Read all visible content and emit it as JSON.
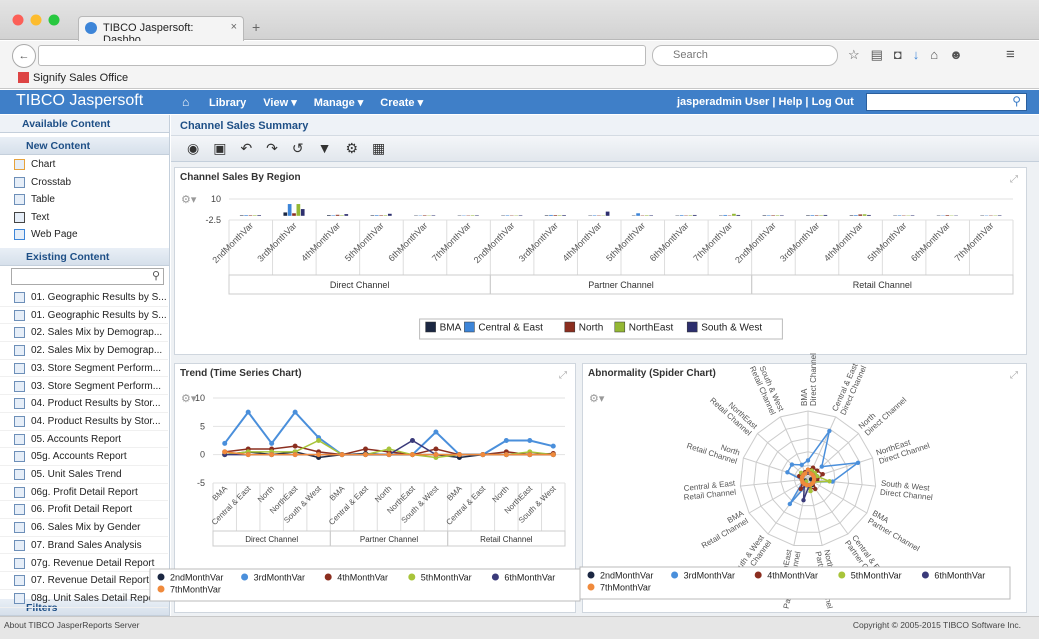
{
  "browser": {
    "tab_title": "TIBCO Jaspersoft: Dashbo...",
    "search_placeholder": "Search",
    "bookmark": "Signify Sales Office"
  },
  "header": {
    "logo": "TIBCO Jaspersoft",
    "nav": [
      "Library",
      "View",
      "Manage",
      "Create"
    ],
    "user": "jasperadmin User",
    "links": [
      "Help",
      "Log Out"
    ]
  },
  "sidebar": {
    "title": "Available Content",
    "new_content": {
      "title": "New Content",
      "items": [
        "Chart",
        "Crosstab",
        "Table",
        "Text",
        "Web Page"
      ]
    },
    "existing_content": {
      "title": "Existing Content",
      "items": [
        "01. Geographic Results by S...",
        "01. Geographic Results by S...",
        "02. Sales Mix by Demograp...",
        "02. Sales Mix by Demograp...",
        "03. Store Segment Perform...",
        "03. Store Segment Perform...",
        "04. Product Results by Stor...",
        "04. Product Results by Stor...",
        "05. Accounts Report",
        "05g. Accounts Report",
        "05. Unit Sales Trend",
        "06g. Profit Detail Report",
        "06. Profit Detail Report",
        "06. Sales Mix by Gender",
        "07. Brand Sales Analysis",
        "07g. Revenue Detail Report",
        "07. Revenue Detail Report",
        "08g. Unit Sales Detail Report"
      ]
    },
    "filters": "Filters"
  },
  "dashboard": {
    "title": "Channel Sales Summary"
  },
  "footer": {
    "left": "About TIBCO JasperReports Server",
    "right": "Copyright © 2005-2015 TIBCO Software Inc."
  },
  "chart_data": [
    {
      "type": "bar",
      "title": "Channel Sales By Region",
      "groups": [
        {
          "name": "Direct Channel",
          "categories": [
            "2ndMonthVar",
            "3rdMonthVar",
            "4thMonthVar",
            "5thMonthVar",
            "6thMonthVar",
            "7thMonthVar"
          ]
        },
        {
          "name": "Partner Channel",
          "categories": [
            "2ndMonthVar",
            "3rdMonthVar",
            "4thMonthVar",
            "5thMonthVar",
            "6thMonthVar",
            "7thMonthVar"
          ]
        },
        {
          "name": "Retail Channel",
          "categories": [
            "2ndMonthVar",
            "3rdMonthVar",
            "4thMonthVar",
            "5thMonthVar",
            "6thMonthVar",
            "7thMonthVar"
          ]
        }
      ],
      "ylim": [
        -2.5,
        10
      ],
      "yticks": [
        -2.5,
        10
      ],
      "series": [
        {
          "name": "BMA",
          "color": "#1b2742",
          "values": [
            0.3,
            2,
            0.4,
            0.3,
            0.2,
            0.2,
            0.2,
            0.3,
            0.2,
            0.2,
            0.2,
            0.2,
            0.3,
            0.3,
            0.3,
            0.2,
            0.2,
            0.2
          ]
        },
        {
          "name": "Central & East",
          "color": "#3d85d8",
          "values": [
            0.4,
            7,
            0.3,
            0.4,
            0.2,
            0.2,
            0.3,
            0.5,
            0.3,
            1.5,
            0.4,
            0.5,
            0.3,
            0.4,
            0.4,
            0.3,
            0.2,
            0.2
          ]
        },
        {
          "name": "North",
          "color": "#8b2e1f",
          "values": [
            0.3,
            1.5,
            0.6,
            0.3,
            0.3,
            0.2,
            0.2,
            0.4,
            0.2,
            0.2,
            0.2,
            0.2,
            0.3,
            0.3,
            0.8,
            0.2,
            0.4,
            0.2
          ]
        },
        {
          "name": "NorthEast",
          "color": "#94b834",
          "values": [
            0.3,
            7,
            0.3,
            0.3,
            0.2,
            0.3,
            0.2,
            0.3,
            0.2,
            0.3,
            0.3,
            1.2,
            0.3,
            0.3,
            0.9,
            0.2,
            0.2,
            0.2
          ]
        },
        {
          "name": "South & West",
          "color": "#2d2f6e",
          "values": [
            0.4,
            4,
            1,
            1.2,
            0.3,
            0.3,
            0.3,
            0.4,
            2.5,
            0.3,
            0.5,
            0.5,
            0.3,
            0.5,
            0.5,
            0.3,
            0.2,
            0.3
          ]
        }
      ]
    },
    {
      "type": "line",
      "title": "Trend (Time Series Chart)",
      "groups": [
        {
          "name": "Direct Channel",
          "categories": [
            "BMA",
            "Central & East",
            "North",
            "NorthEast",
            "South & West"
          ]
        },
        {
          "name": "Partner Channel",
          "categories": [
            "BMA",
            "Central & East",
            "North",
            "NorthEast",
            "South & West"
          ]
        },
        {
          "name": "Retail Channel",
          "categories": [
            "BMA",
            "Central & East",
            "North",
            "NorthEast",
            "South & West"
          ]
        }
      ],
      "ylim": [
        -5,
        10
      ],
      "yticks": [
        -5,
        0,
        5,
        10
      ],
      "series": [
        {
          "name": "2ndMonthVar",
          "color": "#1b2742",
          "values": [
            0,
            0.5,
            0,
            0.5,
            -0.5,
            0,
            0.2,
            0,
            0,
            0,
            -0.5,
            0,
            0,
            0,
            0
          ]
        },
        {
          "name": "3rdMonthVar",
          "color": "#4a8fdb",
          "values": [
            2,
            7.5,
            2,
            7.5,
            3,
            0,
            0,
            0,
            0,
            4,
            0,
            0,
            2.5,
            2.5,
            1.5
          ]
        },
        {
          "name": "4thMonthVar",
          "color": "#8b2e1f",
          "values": [
            0.5,
            1,
            1,
            1.5,
            0.5,
            0,
            1,
            0.5,
            0,
            1,
            0,
            0,
            0.5,
            0,
            0.2
          ]
        },
        {
          "name": "5thMonthVar",
          "color": "#a8c43a",
          "values": [
            0,
            0.5,
            0.5,
            0.5,
            2.5,
            0,
            0,
            1,
            0,
            -0.5,
            0,
            0,
            0,
            0.5,
            0
          ]
        },
        {
          "name": "6thMonthVar",
          "color": "#3a3a7a",
          "values": [
            0,
            0,
            0,
            0,
            0,
            0,
            0,
            0,
            2.5,
            0,
            0,
            0,
            0,
            0,
            0
          ]
        },
        {
          "name": "7thMonthVar",
          "color": "#f08a3c",
          "values": [
            0.5,
            0,
            0,
            0,
            0,
            0,
            0,
            0,
            0,
            0,
            0,
            0,
            0,
            0,
            0
          ]
        }
      ]
    },
    {
      "type": "radar",
      "title": "Abnormality (Spider Chart)",
      "groups": [
        {
          "name": "Direct Channel",
          "categories": [
            "BMA",
            "Central & East",
            "North",
            "NorthEast",
            "South & West"
          ]
        },
        {
          "name": "Partner Channel",
          "categories": [
            "BMA",
            "Central & East",
            "North",
            "NorthEast",
            "South & West"
          ]
        },
        {
          "name": "Retail Channel",
          "categories": [
            "BMA",
            "Central & East",
            "North",
            "NorthEast",
            "South & West"
          ]
        }
      ],
      "rlim": [
        -1,
        10
      ],
      "series": [
        {
          "name": "2ndMonthVar",
          "color": "#1b2742",
          "values": [
            0,
            0.5,
            0,
            0.5,
            -0.5,
            0,
            0.2,
            0,
            0,
            0,
            -0.5,
            0,
            0,
            0,
            0
          ]
        },
        {
          "name": "3rdMonthVar",
          "color": "#4a8fdb",
          "values": [
            2,
            7.5,
            2,
            7.5,
            3,
            0,
            0,
            0,
            0,
            4,
            0,
            0,
            2.5,
            2.5,
            1.5
          ]
        },
        {
          "name": "4thMonthVar",
          "color": "#8b2e1f",
          "values": [
            0.5,
            1,
            1,
            1.5,
            0.5,
            0,
            1,
            0.5,
            0,
            1,
            0,
            0,
            0.5,
            0,
            0.2
          ]
        },
        {
          "name": "5thMonthVar",
          "color": "#a8c43a",
          "values": [
            0,
            0.5,
            0.5,
            0.5,
            2.5,
            0,
            0,
            1,
            0,
            -0.5,
            0,
            0,
            0,
            0.5,
            0
          ]
        },
        {
          "name": "6thMonthVar",
          "color": "#3a3a7a",
          "values": [
            0,
            0,
            0,
            0,
            0,
            0,
            0,
            0,
            2.5,
            0,
            0,
            0,
            0,
            0,
            0
          ]
        },
        {
          "name": "7thMonthVar",
          "color": "#f08a3c",
          "values": [
            0.5,
            0,
            0,
            0,
            0,
            0,
            0,
            0,
            0,
            0,
            0,
            0,
            0,
            0,
            0
          ]
        }
      ]
    }
  ]
}
